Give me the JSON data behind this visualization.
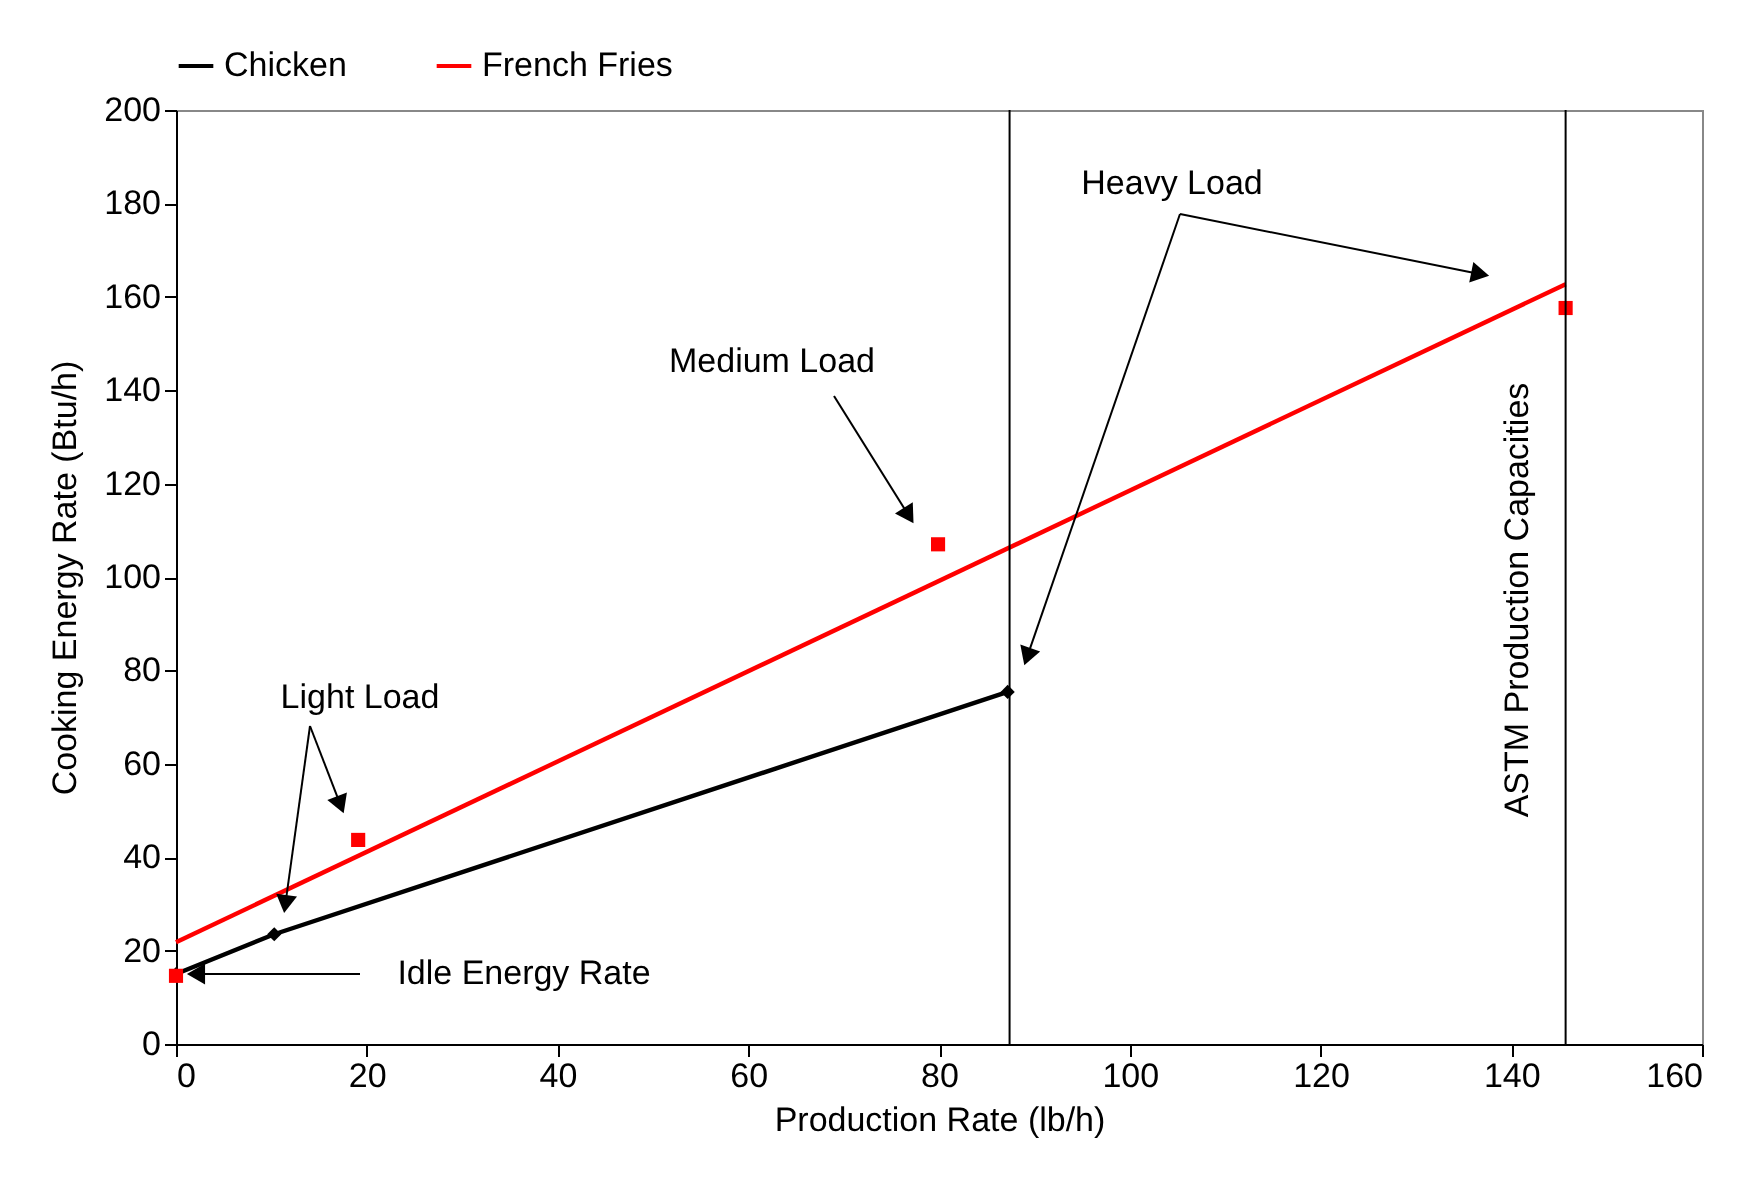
{
  "chart_data": {
    "type": "line",
    "xlabel": "Production Rate (lb/h)",
    "ylabel": "Cooking Energy Rate (Btu/h)",
    "xlim": [
      0,
      160
    ],
    "ylim": [
      0,
      200
    ],
    "xticks": [
      0,
      20,
      40,
      60,
      80,
      100,
      120,
      140,
      160
    ],
    "yticks": [
      0,
      20,
      40,
      60,
      80,
      100,
      120,
      140,
      160,
      180,
      200
    ],
    "grid": false,
    "legend": "top",
    "series": [
      {
        "name": "Chicken",
        "color": "#000000",
        "marker": "diamond",
        "x": [
          0,
          10.3,
          87.2
        ],
        "values": [
          15,
          23.5,
          75.4
        ]
      },
      {
        "name": "French Fries",
        "color": "#ff0000",
        "marker": "none",
        "x": [
          0,
          145.7
        ],
        "values": [
          21.8,
          162.7
        ]
      },
      {
        "type": "scatter",
        "color": "#ff0000",
        "marker": "square",
        "x": [
          0,
          19.1,
          79.9,
          145.7
        ],
        "values": [
          14.6,
          43.7,
          107,
          157.6
        ]
      }
    ],
    "ref_lines": [
      {
        "axis": "x",
        "value": 87.4,
        "color": "#000000"
      },
      {
        "axis": "x",
        "value": 145.7,
        "label": "ASTM Production Capacities",
        "color": "#000000"
      }
    ],
    "annotations": [
      "Light Load",
      "Medium Load",
      "Heavy Load",
      "Idle Energy Rate"
    ]
  }
}
